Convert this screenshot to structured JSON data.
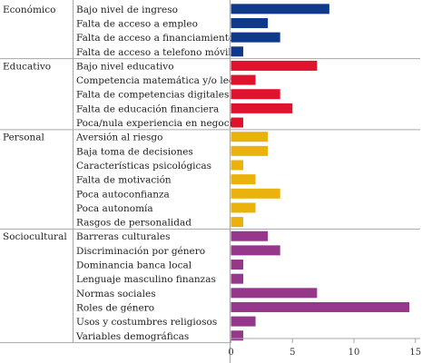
{
  "chart_data": {
    "type": "bar",
    "orientation": "horizontal",
    "grid": false,
    "xlim": [
      0,
      15
    ],
    "x_ticks": [
      "0",
      "5",
      "10",
      "15"
    ],
    "groups": [
      {
        "name": "Económico",
        "color": "#0f3a8c",
        "items": [
          {
            "label": "Bajo nivel de ingreso",
            "value": 8
          },
          {
            "label": "Falta de acceso a empleo",
            "value": 3
          },
          {
            "label": "Falta de acceso a financiamiento",
            "value": 4
          },
          {
            "label": "Falta de acceso a telefono móvil",
            "value": 1
          }
        ]
      },
      {
        "name": "Educativo",
        "color": "#e0122e",
        "items": [
          {
            "label": "Bajo nivel educativo",
            "value": 7
          },
          {
            "label": "Competencia matemática y/o lectora",
            "value": 2
          },
          {
            "label": "Falta de competencias digitales",
            "value": 4
          },
          {
            "label": "Falta de educación financiera",
            "value": 5
          },
          {
            "label": "Poca/nula experiencia en negocios",
            "value": 1
          }
        ]
      },
      {
        "name": "Personal",
        "color": "#e9b20c",
        "items": [
          {
            "label": "Aversión al riesgo",
            "value": 3
          },
          {
            "label": "Baja toma de decisiones",
            "value": 3
          },
          {
            "label": "Características psicológicas",
            "value": 1
          },
          {
            "label": "Falta de motivación",
            "value": 2
          },
          {
            "label": "Poca autoconfianza",
            "value": 4
          },
          {
            "label": "Poca autonomía",
            "value": 2
          },
          {
            "label": "Rasgos de personalidad",
            "value": 1
          }
        ]
      },
      {
        "name": "Sociocultural",
        "color": "#95378a",
        "items": [
          {
            "label": "Barreras culturales",
            "value": 3
          },
          {
            "label": "Discriminación por género",
            "value": 4
          },
          {
            "label": "Dominancia banca local",
            "value": 1
          },
          {
            "label": "Lenguaje masculino finanzas",
            "value": 1
          },
          {
            "label": "Normas sociales",
            "value": 7
          },
          {
            "label": "Roles de género",
            "value": 14.5
          },
          {
            "label": "Usos y costumbres religiosos",
            "value": 2
          },
          {
            "label": "Variables demográficas",
            "value": 1
          }
        ]
      }
    ]
  }
}
